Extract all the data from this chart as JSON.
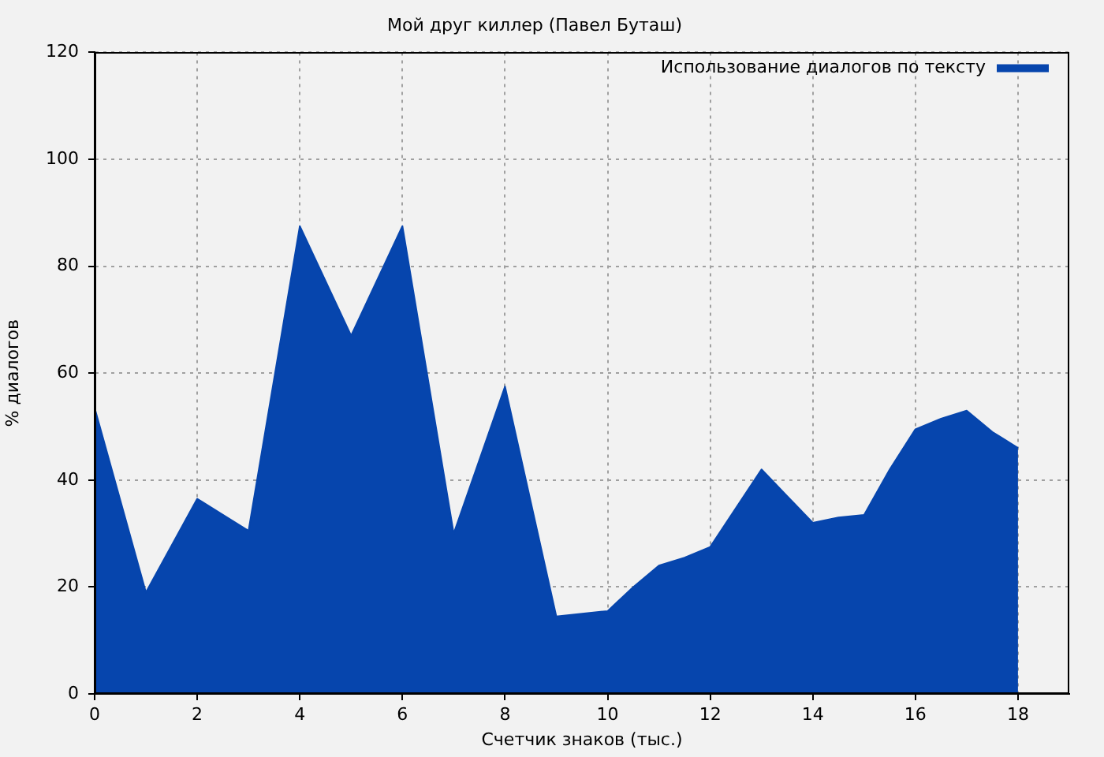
{
  "chart_data": {
    "type": "area",
    "title": "Мой друг киллер (Павел Буташ)",
    "xlabel": "Счетчик знаков (тыс.)",
    "ylabel": "% диалогов",
    "x": [
      0,
      1,
      2,
      2.5,
      3,
      4,
      5,
      6,
      7,
      8,
      9,
      10,
      10.5,
      11,
      11.5,
      12,
      13,
      13.5,
      14,
      14.5,
      15,
      15.5,
      16,
      16.5,
      17,
      17.5,
      18
    ],
    "series": [
      {
        "name": "Использование диалогов по тексту",
        "color": "#0645ad",
        "values": [
          53.5,
          19,
          36.5,
          33.5,
          30.5,
          87.5,
          67,
          87.5,
          30,
          57.5,
          14.5,
          15.5,
          20,
          24,
          25.5,
          27.5,
          42,
          37,
          32,
          33,
          33.5,
          42,
          49.5,
          51.5,
          53,
          49,
          46
        ]
      }
    ],
    "xlim": [
      0,
      19
    ],
    "ylim": [
      0,
      120
    ],
    "xticks": [
      0,
      2,
      4,
      6,
      8,
      10,
      12,
      14,
      16,
      18
    ],
    "yticks": [
      0,
      20,
      40,
      60,
      80,
      100,
      120
    ],
    "grid": true,
    "legend": "top right"
  }
}
